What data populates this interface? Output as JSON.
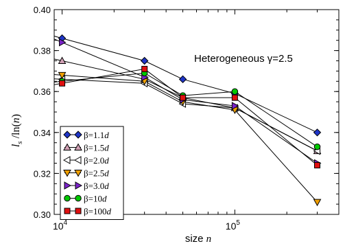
{
  "chart_data": {
    "type": "line",
    "x_scale": "log",
    "xlim": [
      9000,
      400000
    ],
    "ylim": [
      0.3,
      0.4
    ],
    "x": [
      10000,
      30000,
      50000,
      100000,
      300000
    ],
    "x_tick_labels": [
      {
        "base": "10",
        "exp": "4"
      },
      {
        "base": "10",
        "exp": "5"
      }
    ],
    "x_label": {
      "text": "size ",
      "italic": "n"
    },
    "y_label": {
      "l": "l",
      "sub": "s",
      "rest": " /ln(",
      "n": "n",
      "close": ")"
    },
    "y_ticks": [
      "0.30",
      "0.32",
      "0.34",
      "0.36",
      "0.38",
      "0.40"
    ],
    "y_tick_values": [
      0.3,
      0.32,
      0.34,
      0.36,
      0.38,
      0.4
    ],
    "annotation": "Heterogeneous γ=2.5",
    "legend_position": "bottom-left",
    "series": [
      {
        "name": "β=1.1",
        "italic": "d",
        "marker": "diamond",
        "color": "#1f35c8",
        "values": [
          0.386,
          0.375,
          0.366,
          0.359,
          0.34
        ]
      },
      {
        "name": "β=1.5",
        "italic": "d",
        "marker": "triangle-up",
        "color": "#d0a0b4",
        "values": [
          0.375,
          0.366,
          0.357,
          0.352,
          0.331
        ]
      },
      {
        "name": "β=2.0",
        "italic": "d",
        "marker": "triangle-left",
        "color": "#ffffff",
        "values": [
          0.366,
          0.364,
          0.354,
          0.352,
          0.331
        ]
      },
      {
        "name": "β=2.5",
        "italic": "d",
        "marker": "triangle-down",
        "color": "#f0a000",
        "values": [
          0.368,
          0.365,
          0.355,
          0.351,
          0.306
        ]
      },
      {
        "name": "β=3.0",
        "italic": "d",
        "marker": "triangle-right",
        "color": "#7a22c8",
        "values": [
          0.384,
          0.367,
          0.356,
          0.353,
          0.325
        ]
      },
      {
        "name": "β=10",
        "italic": "d",
        "marker": "circle",
        "color": "#00c800",
        "values": [
          0.365,
          0.369,
          0.358,
          0.36,
          0.333
        ]
      },
      {
        "name": "β=100",
        "italic": "d",
        "marker": "square",
        "color": "#e01010",
        "values": [
          0.364,
          0.371,
          0.357,
          0.357,
          0.324
        ]
      }
    ]
  }
}
